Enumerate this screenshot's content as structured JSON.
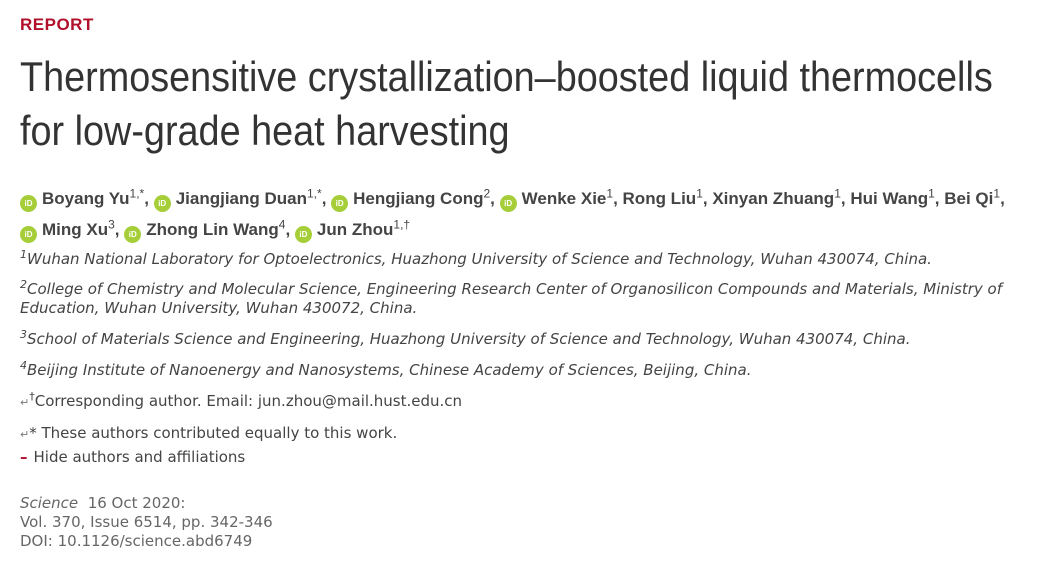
{
  "article": {
    "kicker": "REPORT",
    "title": "Thermosensitive crystallization–boosted liquid thermocells for low-grade heat harvesting"
  },
  "authors": [
    {
      "name": "Boyang Yu",
      "sup": "1,*",
      "orcid": true,
      "sep": ","
    },
    {
      "name": "Jiangjiang Duan",
      "sup": "1,*",
      "orcid": true,
      "sep": ","
    },
    {
      "name": "Hengjiang Cong",
      "sup": "2",
      "orcid": true,
      "sep": ","
    },
    {
      "name": "Wenke Xie",
      "sup": "1",
      "orcid": true,
      "sep": ","
    },
    {
      "name": "Rong Liu",
      "sup": "1",
      "orcid": false,
      "sep": ","
    },
    {
      "name": "Xinyan Zhuang",
      "sup": "1",
      "orcid": false,
      "sep": ","
    },
    {
      "name": "Hui Wang",
      "sup": "1",
      "orcid": false,
      "sep": ","
    },
    {
      "name": "Bei Qi",
      "sup": "1",
      "orcid": false,
      "sep": ","
    },
    {
      "name": "Ming Xu",
      "sup": "3",
      "orcid": true,
      "sep": ","
    },
    {
      "name": "Zhong Lin Wang",
      "sup": "4",
      "orcid": true,
      "sep": ","
    },
    {
      "name": "Jun Zhou",
      "sup": "1,†",
      "orcid": true,
      "sep": ""
    }
  ],
  "orcid_icon_text": "iD",
  "affiliations": [
    {
      "num": "1",
      "text": "Wuhan National Laboratory for Optoelectronics, Huazhong University of Science and Technology, Wuhan 430074, China."
    },
    {
      "num": "2",
      "text": "College of Chemistry and Molecular Science, Engineering Research Center of Organosilicon Compounds and Materials, Ministry of Education, Wuhan University, Wuhan 430072, China."
    },
    {
      "num": "3",
      "text": "School of Materials Science and Engineering, Huazhong University of Science and Technology, Wuhan 430074, China."
    },
    {
      "num": "4",
      "text": "Beijing Institute of Nanoenergy and Nanosystems, Chinese Academy of Sciences, Beijing, China."
    }
  ],
  "notes": {
    "return_glyph": "↵",
    "corresponding_mark": "†",
    "corresponding_text": "Corresponding author. Email: ",
    "email": "jun.zhou@mail.hust.edu.cn",
    "equal_text": "* These authors contributed equally to this work."
  },
  "toggle": {
    "icon": "–",
    "label": "Hide authors and affiliations"
  },
  "citation": {
    "journal": "Science",
    "date": "16 Oct 2020:",
    "volume_line": "Vol. 370, Issue 6514, pp. 342-346",
    "doi_line": "DOI: 10.1126/science.abd6749"
  },
  "colors": {
    "accent": "#b1102b",
    "orcid": "#a6ce39",
    "text": "#333333"
  }
}
